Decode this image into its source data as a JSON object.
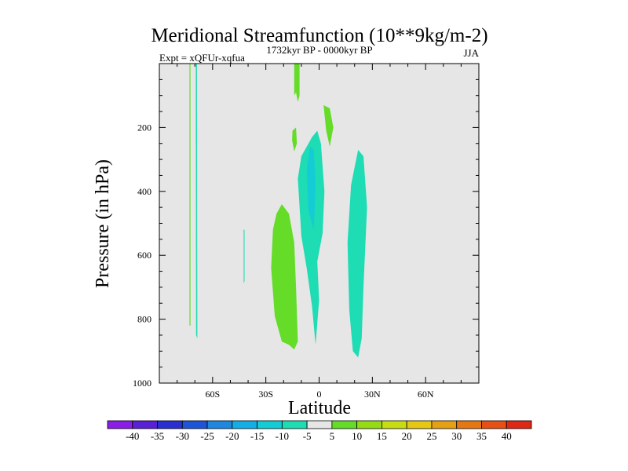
{
  "chart_data": {
    "type": "filled-contour",
    "title": "Meridional Streamfunction (10**9kg/m-2)",
    "subtitle_left": "Expt = xQFUr-xqfua",
    "subtitle_center": "1732kyr BP - 0000kyr BP",
    "subtitle_right": "JJA",
    "xlabel": "Latitude",
    "ylabel": "Pressure (in hPa)",
    "xlim": [
      -90,
      90
    ],
    "ylim": [
      1000,
      0
    ],
    "x_ticks": [
      {
        "value": -60,
        "label": "60S"
      },
      {
        "value": -30,
        "label": "30S"
      },
      {
        "value": 0,
        "label": "0"
      },
      {
        "value": 30,
        "label": "30N"
      },
      {
        "value": 60,
        "label": "60N"
      }
    ],
    "y_ticks": [
      {
        "value": 200,
        "label": "200"
      },
      {
        "value": 400,
        "label": "400"
      },
      {
        "value": 600,
        "label": "600"
      },
      {
        "value": 800,
        "label": "800"
      },
      {
        "value": 1000,
        "label": "1000"
      }
    ],
    "colorbar": {
      "labels": [
        "-40",
        "-35",
        "-30",
        "-25",
        "-20",
        "-15",
        "-10",
        "-5",
        "5",
        "10",
        "15",
        "20",
        "25",
        "30",
        "35",
        "40"
      ],
      "colors": [
        "#8a1ee6",
        "#5a20d8",
        "#2a30d0",
        "#1e55d8",
        "#1e88e0",
        "#14aee6",
        "#14ccd6",
        "#1edcb4",
        "#e6e6e6",
        "#64dc28",
        "#96dc14",
        "#c8dc14",
        "#e6c814",
        "#e6a014",
        "#e67814",
        "#e65014",
        "#dc2814"
      ]
    },
    "regions": [
      {
        "name": "green-strip-far-south",
        "value_class": "5 to 10",
        "color": "#64dc28",
        "points": [
          [
            -73,
            0
          ],
          [
            -72.5,
            0
          ],
          [
            -72.5,
            820
          ],
          [
            -73,
            820
          ]
        ]
      },
      {
        "name": "cyan-strip-far-south",
        "value_class": "-10 to -5",
        "color": "#1edcb4",
        "points": [
          [
            -69.5,
            0
          ],
          [
            -68.8,
            0
          ],
          [
            -68.6,
            860
          ],
          [
            -69.3,
            850
          ]
        ]
      },
      {
        "name": "cyan-spot-40s",
        "value_class": "-10 to -5",
        "color": "#1edcb4",
        "points": [
          [
            -42.5,
            520
          ],
          [
            -42,
            520
          ],
          [
            -42,
            680
          ],
          [
            -42.5,
            690
          ]
        ]
      },
      {
        "name": "green-cell-south",
        "value_class": "5 to 10",
        "color": "#64dc28",
        "points": [
          [
            -24,
            470
          ],
          [
            -21,
            440
          ],
          [
            -17,
            470
          ],
          [
            -14,
            560
          ],
          [
            -13,
            700
          ],
          [
            -12,
            870
          ],
          [
            -14,
            895
          ],
          [
            -17,
            880
          ],
          [
            -21,
            870
          ],
          [
            -25,
            790
          ],
          [
            -27,
            640
          ],
          [
            -26,
            520
          ]
        ]
      },
      {
        "name": "green-upper-column",
        "value_class": "5 to 10",
        "color": "#64dc28",
        "points": [
          [
            -14,
            0
          ],
          [
            -11,
            0
          ],
          [
            -11,
            100
          ],
          [
            -12,
            120
          ],
          [
            -13,
            90
          ],
          [
            -14,
            100
          ]
        ]
      },
      {
        "name": "green-small-spot",
        "value_class": "5 to 10",
        "color": "#64dc28",
        "points": [
          [
            -15,
            210
          ],
          [
            -13,
            200
          ],
          [
            -12.5,
            250
          ],
          [
            -14,
            275
          ],
          [
            -15.2,
            240
          ]
        ]
      },
      {
        "name": "green-cell-north-upper",
        "value_class": "5 to 10",
        "color": "#64dc28",
        "points": [
          [
            2.5,
            130
          ],
          [
            6,
            140
          ],
          [
            8,
            200
          ],
          [
            6,
            260
          ],
          [
            4,
            210
          ]
        ]
      },
      {
        "name": "cyan-cell-equator",
        "value_class": "-10 to -5",
        "color": "#1edcb4",
        "points": [
          [
            -4,
            230
          ],
          [
            -1,
            210
          ],
          [
            1,
            250
          ],
          [
            3,
            400
          ],
          [
            2,
            530
          ],
          [
            -1,
            620
          ],
          [
            0,
            740
          ],
          [
            -2,
            880
          ],
          [
            -4,
            760
          ],
          [
            -7,
            640
          ],
          [
            -10,
            540
          ],
          [
            -12,
            360
          ],
          [
            -10,
            290
          ]
        ]
      },
      {
        "name": "blue-core-equator",
        "value_class": "-15 to -10",
        "color": "#14ccd6",
        "points": [
          [
            -5,
            260
          ],
          [
            -3,
            270
          ],
          [
            -2,
            380
          ],
          [
            -3,
            520
          ],
          [
            -6,
            460
          ],
          [
            -7,
            330
          ]
        ]
      },
      {
        "name": "cyan-cell-north",
        "value_class": "-10 to -5",
        "color": "#1edcb4",
        "points": [
          [
            22,
            270
          ],
          [
            25,
            290
          ],
          [
            27,
            450
          ],
          [
            25,
            700
          ],
          [
            24,
            860
          ],
          [
            22,
            920
          ],
          [
            19,
            900
          ],
          [
            17,
            770
          ],
          [
            16,
            560
          ],
          [
            18,
            380
          ]
        ]
      }
    ]
  }
}
